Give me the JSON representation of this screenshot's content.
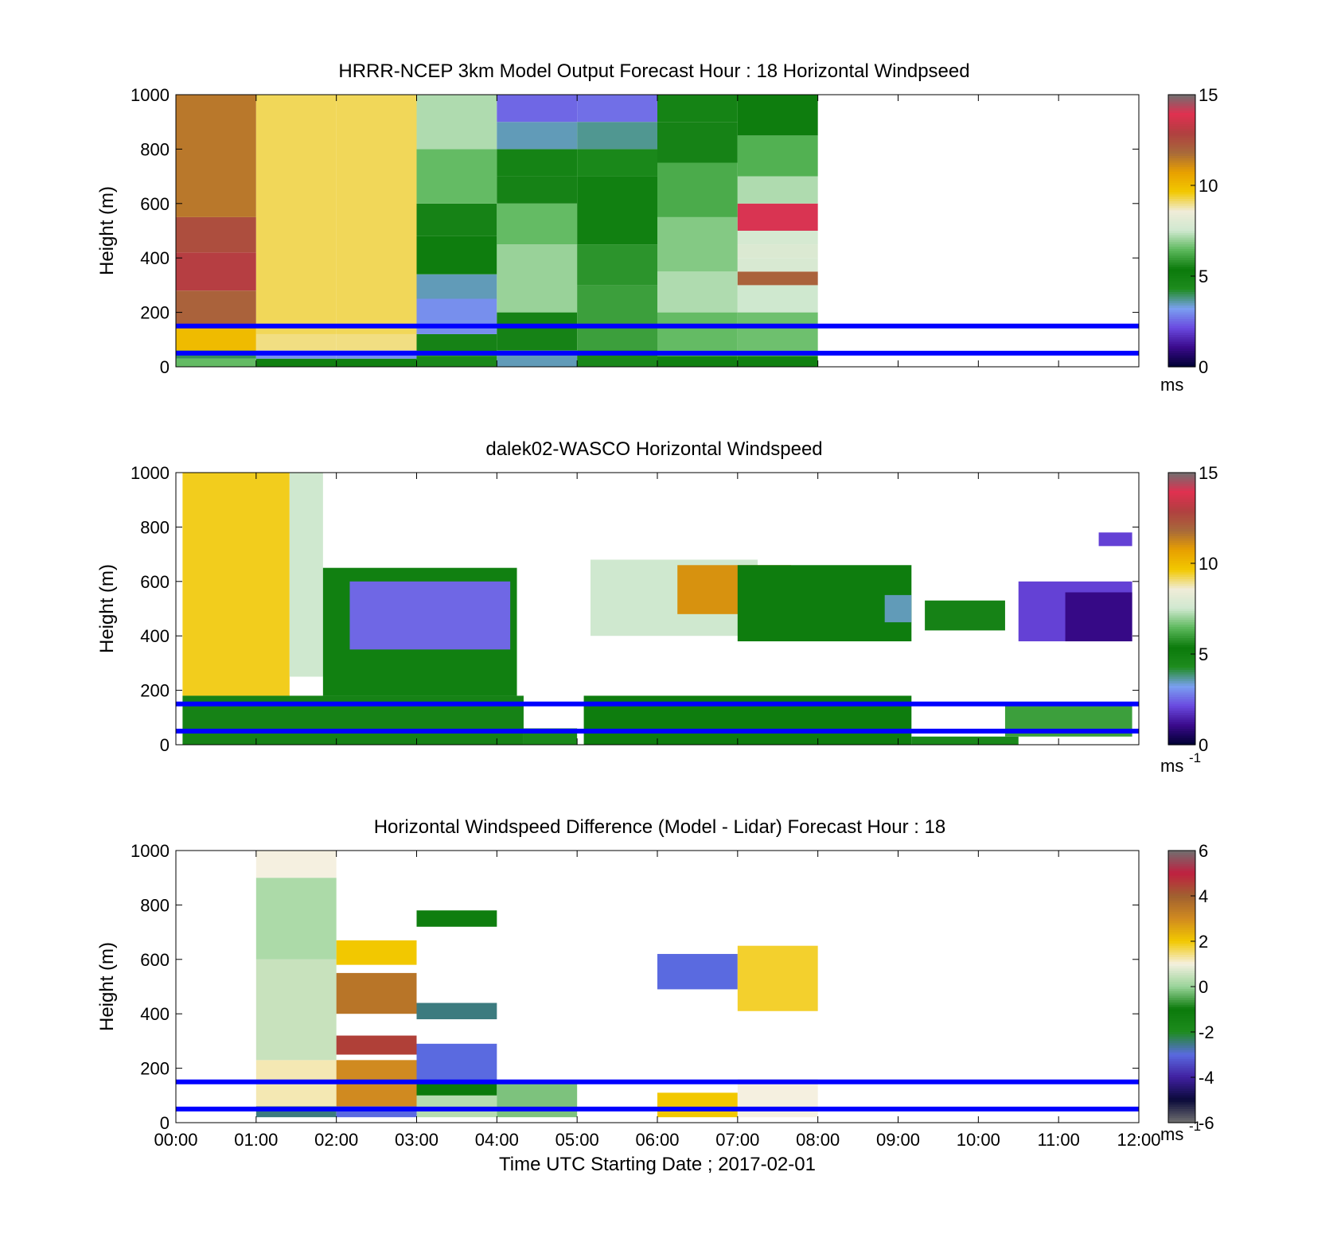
{
  "colors": {
    "reference_line": "#0000ff",
    "windspeed_colormap": [
      "#000033",
      "#3a0a8c",
      "#6a4ae0",
      "#7aa0f0",
      "#1e8c1e",
      "#0b7a0b",
      "#5cb85c",
      "#cfe8cf",
      "#f0ecd8",
      "#f2c800",
      "#e8a000",
      "#a86a3a",
      "#b04040",
      "#e03050",
      "#707070"
    ],
    "difference_colormap": [
      "#707070",
      "#0a0a3a",
      "#4020a0",
      "#5a6ae0",
      "#1e8c1e",
      "#0b7a0b",
      "#9ad49a",
      "#f5f0e0",
      "#f2c800",
      "#d08a20",
      "#a06030",
      "#c02040",
      "#707070"
    ]
  },
  "chart_data": [
    {
      "type": "heatmap",
      "title": "HRRR-NCEP 3km Model Output   Forecast Hour : 18 Horizontal Windpseed",
      "xlabel": "",
      "ylabel": "Height (m)",
      "ylim": [
        0,
        1000
      ],
      "y_ticks": [
        "0",
        "200",
        "400",
        "600",
        "800",
        "1000"
      ],
      "x_ticks": [
        "",
        "",
        "",
        "",
        "",
        "",
        "",
        "",
        "",
        "",
        "",
        "",
        ""
      ],
      "colorbar": {
        "range": [
          0,
          15
        ],
        "ticks": [
          "0",
          "5",
          "10",
          "15"
        ],
        "unit": "ms"
      },
      "reference_lines_m": [
        50,
        150
      ],
      "columns": [
        {
          "start": "00:00",
          "end": "01:00",
          "layers": [
            [
              0,
              30,
              6.5
            ],
            [
              30,
              60,
              4
            ],
            [
              60,
              150,
              10
            ],
            [
              150,
              280,
              12
            ],
            [
              280,
              420,
              13
            ],
            [
              420,
              550,
              12.5
            ],
            [
              550,
              1000,
              11.5
            ]
          ]
        },
        {
          "start": "01:00",
          "end": "02:00",
          "layers": [
            [
              0,
              30,
              5
            ],
            [
              30,
              60,
              3
            ],
            [
              60,
              120,
              9
            ],
            [
              120,
              1000,
              9.2
            ]
          ]
        },
        {
          "start": "02:00",
          "end": "03:00",
          "layers": [
            [
              0,
              30,
              5
            ],
            [
              30,
              60,
              3
            ],
            [
              60,
              120,
              9
            ],
            [
              120,
              1000,
              9.2
            ]
          ]
        },
        {
          "start": "03:00",
          "end": "04:00",
          "layers": [
            [
              0,
              40,
              4.5
            ],
            [
              40,
              120,
              5.5
            ],
            [
              120,
              250,
              3
            ],
            [
              250,
              340,
              3.5
            ],
            [
              340,
              480,
              5.2
            ],
            [
              480,
              600,
              5.5
            ],
            [
              600,
              800,
              6.5
            ],
            [
              800,
              1000,
              7.2
            ]
          ]
        },
        {
          "start": "04:00",
          "end": "05:00",
          "layers": [
            [
              0,
              60,
              3.5
            ],
            [
              60,
              200,
              5.5
            ],
            [
              200,
              450,
              7
            ],
            [
              450,
              600,
              6.5
            ],
            [
              600,
              700,
              5.5
            ],
            [
              700,
              800,
              4.8
            ],
            [
              800,
              900,
              3.5
            ],
            [
              900,
              1000,
              2.5
            ]
          ]
        },
        {
          "start": "05:00",
          "end": "06:00",
          "layers": [
            [
              0,
              60,
              4.5
            ],
            [
              60,
              300,
              6
            ],
            [
              300,
              450,
              5.8
            ],
            [
              450,
              700,
              5
            ],
            [
              700,
              800,
              4.5
            ],
            [
              800,
              900,
              3.7
            ],
            [
              900,
              1000,
              2.6
            ]
          ]
        },
        {
          "start": "06:00",
          "end": "07:00",
          "layers": [
            [
              0,
              40,
              5
            ],
            [
              40,
              200,
              6.5
            ],
            [
              200,
              350,
              7.2
            ],
            [
              350,
              550,
              6.8
            ],
            [
              550,
              750,
              6.2
            ],
            [
              750,
              900,
              5.5
            ],
            [
              900,
              1000,
              4.8
            ]
          ]
        },
        {
          "start": "07:00",
          "end": "08:00",
          "layers": [
            [
              0,
              40,
              5
            ],
            [
              40,
              200,
              6.6
            ],
            [
              200,
              300,
              7.5
            ],
            [
              300,
              350,
              12
            ],
            [
              350,
              400,
              7.8
            ],
            [
              400,
              450,
              7.9
            ],
            [
              450,
              500,
              7.7
            ],
            [
              500,
              600,
              14
            ],
            [
              600,
              700,
              7.2
            ],
            [
              700,
              850,
              6.3
            ],
            [
              850,
              1000,
              5.2
            ]
          ]
        }
      ]
    },
    {
      "type": "heatmap",
      "title": "dalek02-WASCO  Horizontal Windspeed",
      "xlabel": "",
      "ylabel": "Height (m)",
      "ylim": [
        0,
        1000
      ],
      "y_ticks": [
        "0",
        "200",
        "400",
        "600",
        "800",
        "1000"
      ],
      "x_ticks": [
        "",
        "",
        "",
        "",
        "",
        "",
        "",
        "",
        "",
        "",
        "",
        "",
        ""
      ],
      "colorbar": {
        "range": [
          0,
          15
        ],
        "ticks": [
          "0",
          "5",
          "10",
          "15"
        ],
        "unit": "ms",
        "unit_exponent": "-1"
      },
      "reference_lines_m": [
        50,
        150
      ],
      "segments": [
        {
          "start": "00:05",
          "end": "01:25",
          "bottom": 180,
          "top": 1000,
          "value": 9.5
        },
        {
          "start": "01:25",
          "end": "01:50",
          "bottom": 250,
          "top": 1000,
          "value": 7.5
        },
        {
          "start": "00:05",
          "end": "04:20",
          "bottom": 0,
          "top": 180,
          "value": 5.5
        },
        {
          "start": "01:50",
          "end": "04:15",
          "bottom": 180,
          "top": 650,
          "value": 5
        },
        {
          "start": "02:10",
          "end": "04:10",
          "bottom": 350,
          "top": 600,
          "value": 2.5
        },
        {
          "start": "04:20",
          "end": "05:00",
          "bottom": 0,
          "top": 60,
          "value": 4.5
        },
        {
          "start": "05:05",
          "end": "09:10",
          "bottom": 0,
          "top": 180,
          "value": 5.2
        },
        {
          "start": "05:10",
          "end": "07:15",
          "bottom": 400,
          "top": 680,
          "value": 7.5
        },
        {
          "start": "06:15",
          "end": "07:40",
          "bottom": 480,
          "top": 660,
          "value": 11
        },
        {
          "start": "07:00",
          "end": "09:10",
          "bottom": 380,
          "top": 660,
          "value": 5.2
        },
        {
          "start": "08:50",
          "end": "09:10",
          "bottom": 450,
          "top": 550,
          "value": 3.5
        },
        {
          "start": "09:10",
          "end": "10:30",
          "bottom": 0,
          "top": 30,
          "value": 4.5
        },
        {
          "start": "09:20",
          "end": "10:20",
          "bottom": 420,
          "top": 530,
          "value": 5.5
        },
        {
          "start": "10:20",
          "end": "11:55",
          "bottom": 30,
          "top": 150,
          "value": 6
        },
        {
          "start": "10:30",
          "end": "11:55",
          "bottom": 380,
          "top": 600,
          "value": 2
        },
        {
          "start": "11:05",
          "end": "11:55",
          "bottom": 380,
          "top": 560,
          "value": 1
        },
        {
          "start": "11:30",
          "end": "11:55",
          "bottom": 730,
          "top": 780,
          "value": 2
        }
      ]
    },
    {
      "type": "heatmap",
      "title": "Horizontal Windspeed Difference (Model - Lidar) Forecast Hour : 18",
      "xlabel": "Time UTC  Starting Date ; 2017-02-01",
      "ylabel": "Height (m)",
      "ylim": [
        0,
        1000
      ],
      "y_ticks": [
        "0",
        "200",
        "400",
        "600",
        "800",
        "1000"
      ],
      "x_ticks": [
        "00:00",
        "01:00",
        "02:00",
        "03:00",
        "04:00",
        "05:00",
        "06:00",
        "07:00",
        "08:00",
        "09:00",
        "10:00",
        "11:00",
        "12:00"
      ],
      "colorbar": {
        "range": [
          -6,
          6
        ],
        "ticks": [
          "-6",
          "-4",
          "-2",
          "0",
          "2",
          "4",
          "6"
        ],
        "unit": "ms",
        "unit_exponent": "-1"
      },
      "reference_lines_m": [
        50,
        150
      ],
      "segments": [
        {
          "start": "01:00",
          "end": "02:00",
          "bottom": 20,
          "top": 60,
          "value": -2.5
        },
        {
          "start": "01:00",
          "end": "02:00",
          "bottom": 60,
          "top": 230,
          "value": 1.2
        },
        {
          "start": "01:00",
          "end": "02:00",
          "bottom": 230,
          "top": 600,
          "value": 0.5
        },
        {
          "start": "01:00",
          "end": "02:00",
          "bottom": 600,
          "top": 900,
          "value": 0.2
        },
        {
          "start": "01:00",
          "end": "02:00",
          "bottom": 900,
          "top": 1000,
          "value": 1
        },
        {
          "start": "02:00",
          "end": "03:00",
          "bottom": 20,
          "top": 60,
          "value": -3
        },
        {
          "start": "02:00",
          "end": "03:00",
          "bottom": 60,
          "top": 230,
          "value": 3
        },
        {
          "start": "02:00",
          "end": "03:00",
          "bottom": 250,
          "top": 320,
          "value": 4.5
        },
        {
          "start": "02:00",
          "end": "03:00",
          "bottom": 400,
          "top": 550,
          "value": 3.5
        },
        {
          "start": "02:00",
          "end": "03:00",
          "bottom": 580,
          "top": 670,
          "value": 2
        },
        {
          "start": "03:00",
          "end": "04:00",
          "bottom": 20,
          "top": 100,
          "value": 0.3
        },
        {
          "start": "03:00",
          "end": "04:00",
          "bottom": 100,
          "top": 150,
          "value": -1
        },
        {
          "start": "03:00",
          "end": "04:00",
          "bottom": 150,
          "top": 290,
          "value": -3
        },
        {
          "start": "03:00",
          "end": "04:00",
          "bottom": 380,
          "top": 440,
          "value": -2.5
        },
        {
          "start": "03:00",
          "end": "04:00",
          "bottom": 720,
          "top": 780,
          "value": -1.2
        },
        {
          "start": "04:00",
          "end": "05:00",
          "bottom": 20,
          "top": 150,
          "value": -0.2
        },
        {
          "start": "06:00",
          "end": "07:00",
          "bottom": 20,
          "top": 110,
          "value": 2
        },
        {
          "start": "06:00",
          "end": "07:00",
          "bottom": 490,
          "top": 620,
          "value": -3
        },
        {
          "start": "07:00",
          "end": "08:00",
          "bottom": 20,
          "top": 160,
          "value": 1
        },
        {
          "start": "07:00",
          "end": "08:00",
          "bottom": 410,
          "top": 650,
          "value": 1.8
        }
      ]
    }
  ]
}
